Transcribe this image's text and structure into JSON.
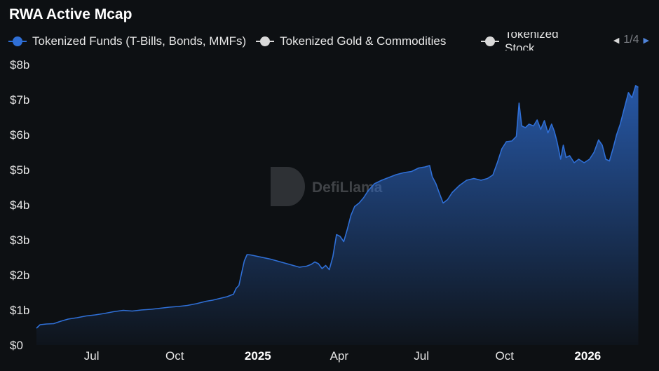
{
  "chart_data": {
    "type": "area",
    "title": "RWA Active Mcap",
    "legend": {
      "position": "top-left",
      "page_indicator": "1/4",
      "items": [
        {
          "label": "Tokenized Funds (T-Bills, Bonds, MMFs)",
          "color": "#2f6fd6",
          "active": true
        },
        {
          "label": "Tokenized Gold & Commodities",
          "color": "#d9d9d9",
          "active": false
        },
        {
          "label": "Tokenized Stock",
          "color": "#d9d9d9",
          "active": false
        }
      ]
    },
    "y_axis": {
      "ticks": [
        {
          "value": 0,
          "label": "$0"
        },
        {
          "value": 1,
          "label": "$1b"
        },
        {
          "value": 2,
          "label": "$2b"
        },
        {
          "value": 3,
          "label": "$3b"
        },
        {
          "value": 4,
          "label": "$4b"
        },
        {
          "value": 5,
          "label": "$5b"
        },
        {
          "value": 6,
          "label": "$6b"
        },
        {
          "value": 7,
          "label": "$7b"
        },
        {
          "value": 8,
          "label": "$8b"
        }
      ],
      "ylim": [
        0,
        8
      ],
      "unit": "billions USD"
    },
    "x_axis": {
      "range": [
        "2024-05-01",
        "2026-03-10"
      ],
      "ticks": [
        {
          "date": "2024-07-01",
          "label": "Jul",
          "bold": false
        },
        {
          "date": "2024-10-01",
          "label": "Oct",
          "bold": false
        },
        {
          "date": "2025-01-01",
          "label": "2025",
          "bold": true
        },
        {
          "date": "2025-04-01",
          "label": "Apr",
          "bold": false
        },
        {
          "date": "2025-07-01",
          "label": "Jul",
          "bold": false
        },
        {
          "date": "2025-10-01",
          "label": "Oct",
          "bold": false
        },
        {
          "date": "2026-01-01",
          "label": "2026",
          "bold": true
        }
      ]
    },
    "grid": false,
    "watermark": "DefiLlama",
    "series": [
      {
        "name": "Tokenized Funds (T-Bills, Bonds, MMFs)",
        "color": "#2f6fd6",
        "points": [
          [
            "2024-05-01",
            0.48
          ],
          [
            "2024-05-05",
            0.58
          ],
          [
            "2024-05-12",
            0.6
          ],
          [
            "2024-05-20",
            0.61
          ],
          [
            "2024-05-28",
            0.68
          ],
          [
            "2024-06-05",
            0.74
          ],
          [
            "2024-06-15",
            0.78
          ],
          [
            "2024-06-25",
            0.83
          ],
          [
            "2024-07-05",
            0.86
          ],
          [
            "2024-07-15",
            0.9
          ],
          [
            "2024-07-25",
            0.95
          ],
          [
            "2024-08-05",
            0.99
          ],
          [
            "2024-08-15",
            0.97
          ],
          [
            "2024-08-25",
            1.0
          ],
          [
            "2024-09-05",
            1.02
          ],
          [
            "2024-09-15",
            1.05
          ],
          [
            "2024-09-25",
            1.08
          ],
          [
            "2024-10-05",
            1.1
          ],
          [
            "2024-10-15",
            1.13
          ],
          [
            "2024-10-25",
            1.18
          ],
          [
            "2024-11-05",
            1.25
          ],
          [
            "2024-11-12",
            1.28
          ],
          [
            "2024-11-20",
            1.33
          ],
          [
            "2024-11-28",
            1.38
          ],
          [
            "2024-12-05",
            1.45
          ],
          [
            "2024-12-08",
            1.62
          ],
          [
            "2024-12-11",
            1.7
          ],
          [
            "2024-12-14",
            2.05
          ],
          [
            "2024-12-17",
            2.4
          ],
          [
            "2024-12-20",
            2.58
          ],
          [
            "2024-12-24",
            2.57
          ],
          [
            "2025-01-15",
            2.45
          ],
          [
            "2025-02-05",
            2.3
          ],
          [
            "2025-02-16",
            2.22
          ],
          [
            "2025-02-24",
            2.25
          ],
          [
            "2025-03-01",
            2.3
          ],
          [
            "2025-03-05",
            2.37
          ],
          [
            "2025-03-09",
            2.32
          ],
          [
            "2025-03-13",
            2.18
          ],
          [
            "2025-03-17",
            2.27
          ],
          [
            "2025-03-21",
            2.15
          ],
          [
            "2025-03-25",
            2.52
          ],
          [
            "2025-03-29",
            3.15
          ],
          [
            "2025-04-02",
            3.1
          ],
          [
            "2025-04-06",
            2.95
          ],
          [
            "2025-04-10",
            3.3
          ],
          [
            "2025-04-14",
            3.7
          ],
          [
            "2025-04-18",
            3.95
          ],
          [
            "2025-04-23",
            4.05
          ],
          [
            "2025-04-28",
            4.2
          ],
          [
            "2025-05-03",
            4.4
          ],
          [
            "2025-05-10",
            4.6
          ],
          [
            "2025-05-18",
            4.7
          ],
          [
            "2025-05-26",
            4.78
          ],
          [
            "2025-06-03",
            4.86
          ],
          [
            "2025-06-12",
            4.92
          ],
          [
            "2025-06-20",
            4.95
          ],
          [
            "2025-06-28",
            5.05
          ],
          [
            "2025-07-05",
            5.08
          ],
          [
            "2025-07-10",
            5.12
          ],
          [
            "2025-07-13",
            4.8
          ],
          [
            "2025-07-17",
            4.6
          ],
          [
            "2025-07-21",
            4.32
          ],
          [
            "2025-07-25",
            4.05
          ],
          [
            "2025-07-30",
            4.15
          ],
          [
            "2025-08-04",
            4.35
          ],
          [
            "2025-08-12",
            4.55
          ],
          [
            "2025-08-20",
            4.7
          ],
          [
            "2025-08-28",
            4.75
          ],
          [
            "2025-09-05",
            4.7
          ],
          [
            "2025-09-12",
            4.75
          ],
          [
            "2025-09-18",
            4.85
          ],
          [
            "2025-09-23",
            5.2
          ],
          [
            "2025-09-28",
            5.6
          ],
          [
            "2025-10-03",
            5.8
          ],
          [
            "2025-10-09",
            5.82
          ],
          [
            "2025-10-14",
            5.95
          ],
          [
            "2025-10-17",
            6.9
          ],
          [
            "2025-10-20",
            6.25
          ],
          [
            "2025-10-24",
            6.2
          ],
          [
            "2025-10-28",
            6.3
          ],
          [
            "2025-11-02",
            6.25
          ],
          [
            "2025-11-06",
            6.42
          ],
          [
            "2025-11-10",
            6.15
          ],
          [
            "2025-11-14",
            6.4
          ],
          [
            "2025-11-18",
            6.05
          ],
          [
            "2025-11-22",
            6.3
          ],
          [
            "2025-11-25",
            6.1
          ],
          [
            "2025-11-28",
            5.8
          ],
          [
            "2025-12-02",
            5.3
          ],
          [
            "2025-12-05",
            5.7
          ],
          [
            "2025-12-08",
            5.35
          ],
          [
            "2025-12-12",
            5.4
          ],
          [
            "2025-12-17",
            5.2
          ],
          [
            "2025-12-22",
            5.3
          ],
          [
            "2025-12-28",
            5.2
          ],
          [
            "2026-01-03",
            5.3
          ],
          [
            "2026-01-08",
            5.5
          ],
          [
            "2026-01-13",
            5.85
          ],
          [
            "2026-01-17",
            5.7
          ],
          [
            "2026-01-21",
            5.3
          ],
          [
            "2026-01-25",
            5.25
          ],
          [
            "2026-01-29",
            5.6
          ],
          [
            "2026-02-02",
            6.0
          ],
          [
            "2026-02-06",
            6.3
          ],
          [
            "2026-02-10",
            6.7
          ],
          [
            "2026-02-15",
            7.2
          ],
          [
            "2026-02-19",
            7.05
          ],
          [
            "2026-02-23",
            7.4
          ],
          [
            "2026-02-26",
            7.35
          ]
        ]
      }
    ]
  }
}
